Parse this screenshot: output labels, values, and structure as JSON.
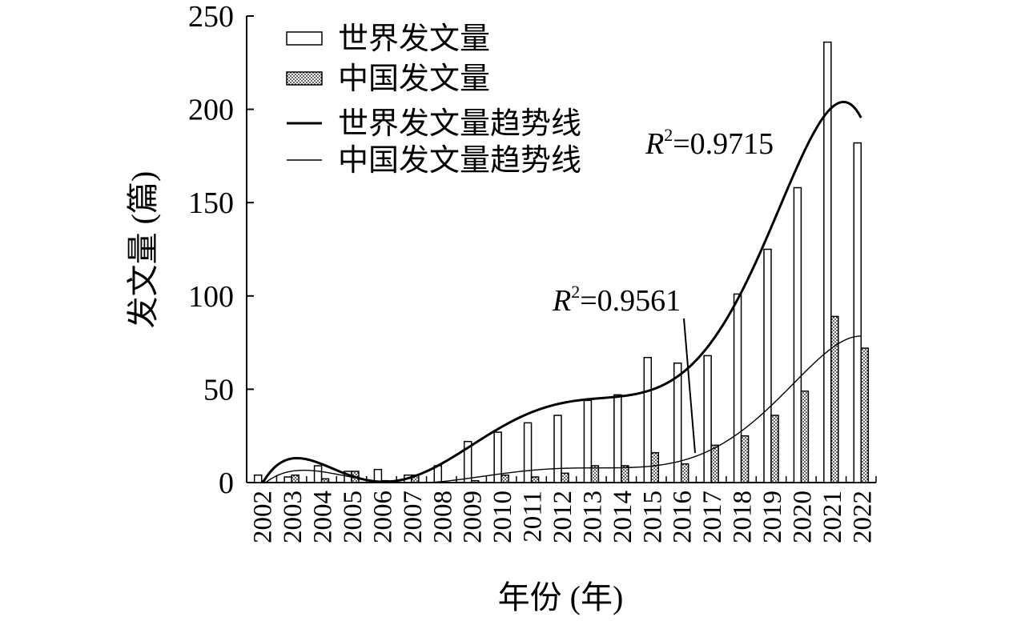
{
  "chart_data": {
    "type": "bar",
    "xlabel": "年份 (年)",
    "ylabel": "发文量 (篇)",
    "ylim": [
      0,
      250
    ],
    "yticks": [
      "0",
      "50",
      "100",
      "150",
      "200",
      "250"
    ],
    "grid": false,
    "legend_position": "top-left",
    "categories": [
      "2002",
      "2003",
      "2004",
      "2005",
      "2006",
      "2007",
      "2008",
      "2009",
      "2010",
      "2011",
      "2012",
      "2013",
      "2014",
      "2015",
      "2016",
      "2017",
      "2018",
      "2019",
      "2020",
      "2021",
      "2022"
    ],
    "series": [
      {
        "name": "世界发文量",
        "kind": "bar",
        "fill": "white",
        "values": [
          4,
          3,
          9,
          6,
          7,
          4,
          9,
          22,
          27,
          32,
          36,
          44,
          47,
          67,
          64,
          68,
          101,
          125,
          158,
          236,
          182
        ]
      },
      {
        "name": "中国发文量",
        "kind": "bar",
        "fill": "dotted",
        "values": [
          0,
          4,
          2,
          6,
          1,
          4,
          0,
          1,
          4,
          3,
          5,
          9,
          9,
          16,
          10,
          20,
          25,
          36,
          49,
          89,
          72
        ]
      }
    ],
    "trendlines": [
      {
        "name": "世界发文量趋势线",
        "of": "世界发文量",
        "stroke_weight": "thick",
        "r2_label": "R",
        "r2_sup": "2",
        "r2_value": "=0.9715"
      },
      {
        "name": "中国发文量趋势线",
        "of": "中国发文量",
        "stroke_weight": "thin",
        "r2_label": "R",
        "r2_sup": "2",
        "r2_value": "=0.9561"
      }
    ]
  }
}
